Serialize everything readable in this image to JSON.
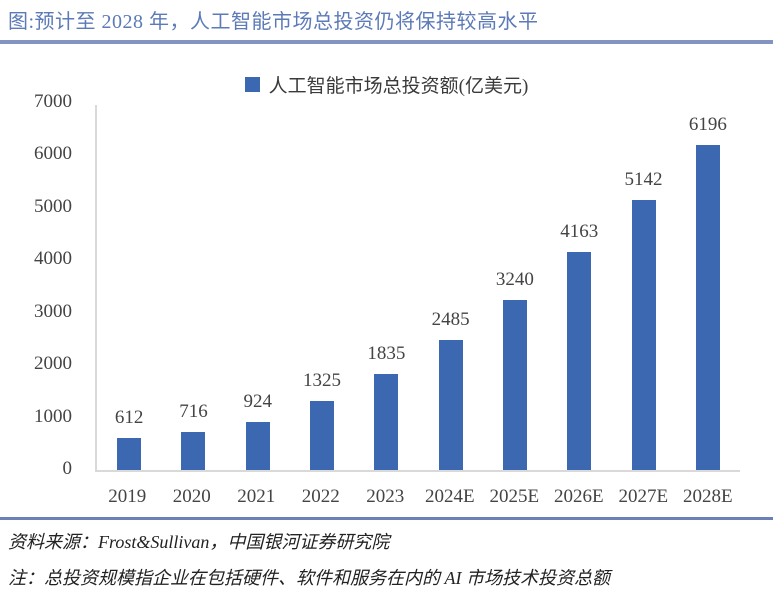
{
  "header": {
    "title": "图:预计至 2028 年，人工智能市场总投资仍将保持较高水平"
  },
  "chart_data": {
    "type": "bar",
    "title": "",
    "legend": [
      "人工智能市场总投资额(亿美元)"
    ],
    "legend_position": "top",
    "categories": [
      "2019",
      "2020",
      "2021",
      "2022",
      "2023",
      "2024E",
      "2025E",
      "2026E",
      "2027E",
      "2028E"
    ],
    "values": [
      612,
      716,
      924,
      1325,
      1835,
      2485,
      3240,
      4163,
      5142,
      6196
    ],
    "ylim": [
      0,
      7000
    ],
    "yticks": [
      0,
      1000,
      2000,
      3000,
      4000,
      5000,
      6000,
      7000
    ],
    "grid": false,
    "data_labels": true,
    "bar_color": "#3c68b1"
  },
  "footer": {
    "source": "资料来源：Frost&Sullivan，中国银河证券研究院",
    "note": "注：总投资规模指企业在包括硬件、软件和服务在内的 AI 市场技术投资总额"
  },
  "colors": {
    "bar": "#3c68b1",
    "title_text": "#5c7ab7",
    "rule_top": "#8494c1",
    "rule_bottom": "#6a80b6",
    "axis_line": "#d9d9d9",
    "label_text": "#444444"
  }
}
